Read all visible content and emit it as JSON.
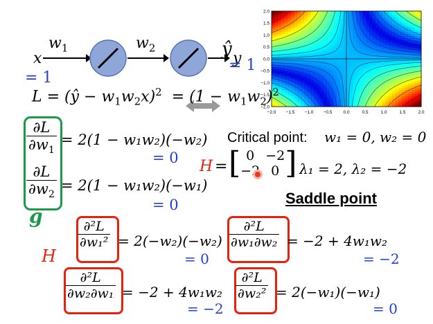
{
  "network": {
    "x_label": "x",
    "w1_label": "w",
    "w1_sub": "1",
    "w2_label": "w",
    "w2_sub": "2",
    "y_label": "y",
    "yhat_label": "ŷ",
    "x_value": "= 1",
    "yhat_value": "= 1"
  },
  "loss": {
    "text_a": "L = (ŷ − w",
    "text_b": "w",
    "text_c": "x)",
    "text_d": "= (1 − w",
    "text_e": "w",
    "text_f": ")"
  },
  "gradient": {
    "dL": "∂L",
    "dw1": "∂w",
    "dw2": "∂w",
    "sub1": "1",
    "sub2": "2",
    "eq1": "= 2(1 − w₁w₂)(−w₂)",
    "eq2": "= 2(1 − w₁w₂)(−w₁)",
    "eq1_value": "= 0",
    "eq2_value": "= 0",
    "label": "g"
  },
  "critical": {
    "label": "Critical point:",
    "values": "w₁ = 0, w₂ = 0"
  },
  "hessian_matrix": {
    "label": "H",
    "a11": "0",
    "a12": "−2",
    "a21": "−2",
    "a22": "0",
    "eigen": "λ₁ = 2, λ₂ = −2"
  },
  "saddle_label": "Saddle point",
  "hessian_entries": {
    "label": "H",
    "d2L": "∂²L",
    "h11_den": "∂w₁²",
    "h11_eq": "= 2(−w₂)(−w₂)",
    "h11_val": "= 0",
    "h12_den": "∂w₁∂w₂",
    "h12_eq": "= −2 + 4w₁w₂",
    "h12_val": "= −2",
    "h21_den": "∂w₂∂w₁",
    "h21_eq": "= −2 + 4w₁w₂",
    "h21_val": "= −2",
    "h22_den": "∂w₂²",
    "h22_eq": "= 2(−w₁)(−w₁)",
    "h22_val": "= 0"
  },
  "chart_data": {
    "type": "heatmap",
    "title": "",
    "xlabel": "",
    "ylabel": "",
    "xlim": [
      -2.0,
      2.0
    ],
    "ylim": [
      -2.0,
      2.0
    ],
    "xticks": [
      "−2.0",
      "−1.5",
      "−1.0",
      "−0.5",
      "0.0",
      "0.5",
      "1.0",
      "1.5",
      "2.0"
    ],
    "yticks": [
      "2.0",
      "1.5",
      "1.0",
      "0.5",
      "0.0",
      "−0.5",
      "−1.0",
      "−1.5",
      "−2.0"
    ],
    "function": "(1 − w1·w2)²",
    "colormap": "jet",
    "grid": false
  }
}
